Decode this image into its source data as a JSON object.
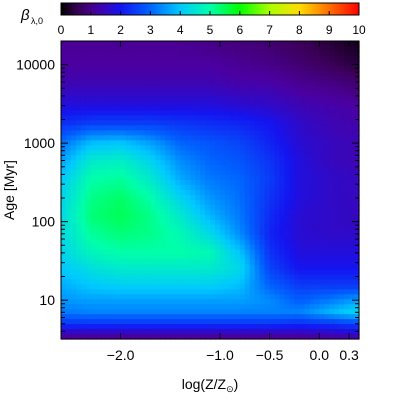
{
  "chart_data": {
    "type": "heatmap",
    "colorbar": {
      "label": "β",
      "label_subscript": "λ,0",
      "ticks": [
        0,
        1,
        2,
        3,
        4,
        5,
        6,
        7,
        8,
        9,
        10
      ],
      "range": [
        0,
        10
      ],
      "colormap": "rainbow",
      "placement": "top"
    },
    "xaxis": {
      "label": "log(Z/Z",
      "label_symbol": "⊙",
      "label_close": ")",
      "range": [
        -2.6,
        0.4
      ],
      "ticks": [
        {
          "value": -2.0,
          "label": "−2.0"
        },
        {
          "value": -1.0,
          "label": "−1.0"
        },
        {
          "value": -0.5,
          "label": "−0.5"
        },
        {
          "value": 0.0,
          "label": "0.0"
        },
        {
          "value": 0.3,
          "label": "0.3"
        }
      ]
    },
    "yaxis": {
      "label": "Age [Myr]",
      "scale": "log",
      "range": [
        3.2,
        20000
      ],
      "ticks": [
        {
          "value": 10,
          "label": "10"
        },
        {
          "value": 100,
          "label": "100"
        },
        {
          "value": 1000,
          "label": "1000"
        },
        {
          "value": 10000,
          "label": "10000"
        }
      ]
    },
    "x": [
      -2.6,
      -2.3,
      -2.0,
      -1.7,
      -1.4,
      -1.1,
      -0.8,
      -0.5,
      -0.2,
      0.1,
      0.4
    ],
    "y": [
      3.5,
      5,
      7,
      10,
      15,
      25,
      40,
      70,
      120,
      200,
      350,
      600,
      1000,
      1800,
      3000,
      5500,
      10000,
      18000
    ],
    "z": [
      [
        1.2,
        1.2,
        1.2,
        1.2,
        1.2,
        1.2,
        1.2,
        1.2,
        1.2,
        1.3,
        1.4
      ],
      [
        2.4,
        2.4,
        2.4,
        2.4,
        2.4,
        2.4,
        2.4,
        2.4,
        2.3,
        2.4,
        2.6
      ],
      [
        3.2,
        3.3,
        3.3,
        3.3,
        3.3,
        3.3,
        3.3,
        3.3,
        3.3,
        3.8,
        4.3
      ],
      [
        3.5,
        3.6,
        3.6,
        3.6,
        3.6,
        3.6,
        3.6,
        3.4,
        2.9,
        3.2,
        3.6
      ],
      [
        3.7,
        4.0,
        4.1,
        4.1,
        4.1,
        4.1,
        3.9,
        3.0,
        2.5,
        2.5,
        2.5
      ],
      [
        4.0,
        4.4,
        4.6,
        4.6,
        4.6,
        4.6,
        4.3,
        2.6,
        2.0,
        2.0,
        2.0
      ],
      [
        4.2,
        4.8,
        5.0,
        5.0,
        5.0,
        4.9,
        4.0,
        2.4,
        1.8,
        1.8,
        1.8
      ],
      [
        4.3,
        5.1,
        5.3,
        5.2,
        4.9,
        4.3,
        3.4,
        2.2,
        1.7,
        1.6,
        1.6
      ],
      [
        4.3,
        5.3,
        5.5,
        5.2,
        4.6,
        3.8,
        3.2,
        2.3,
        1.7,
        1.6,
        1.5
      ],
      [
        4.2,
        5.2,
        5.4,
        5.0,
        4.2,
        3.5,
        3.1,
        2.4,
        1.8,
        1.6,
        1.5
      ],
      [
        4.0,
        5.0,
        5.1,
        4.6,
        3.7,
        3.2,
        3.0,
        2.5,
        1.8,
        1.6,
        1.5
      ],
      [
        3.6,
        4.6,
        4.7,
        4.2,
        3.4,
        3.0,
        2.8,
        2.4,
        1.8,
        1.5,
        1.4
      ],
      [
        3.1,
        3.9,
        4.0,
        3.6,
        3.0,
        2.8,
        2.6,
        2.2,
        1.7,
        1.5,
        1.4
      ],
      [
        2.3,
        2.5,
        2.5,
        2.5,
        2.4,
        2.3,
        2.2,
        2.0,
        1.6,
        1.4,
        1.3
      ],
      [
        1.8,
        1.8,
        1.8,
        1.8,
        1.8,
        1.8,
        1.7,
        1.6,
        1.4,
        1.3,
        1.2
      ],
      [
        1.4,
        1.4,
        1.4,
        1.4,
        1.4,
        1.4,
        1.3,
        1.3,
        1.1,
        1.0,
        0.8
      ],
      [
        1.2,
        1.2,
        1.2,
        1.2,
        1.2,
        1.2,
        1.1,
        1.0,
        0.8,
        0.6,
        0.4
      ],
      [
        1.1,
        1.1,
        1.1,
        1.1,
        1.1,
        1.0,
        0.9,
        0.8,
        0.6,
        0.4,
        0.2
      ]
    ]
  }
}
